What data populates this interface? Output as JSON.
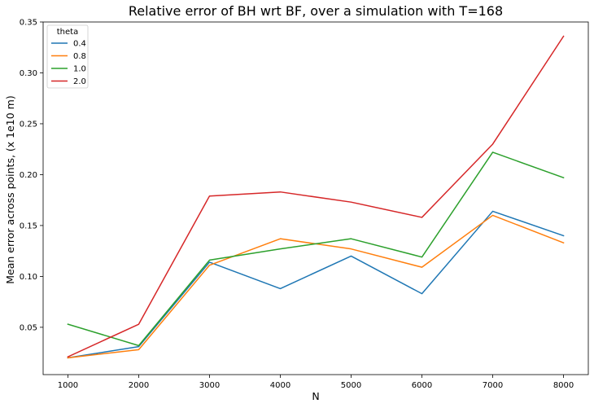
{
  "chart_data": {
    "type": "line",
    "title": "Relative error of BH wrt BF, over a simulation with T=168",
    "xlabel": "N",
    "ylabel": "Mean error across points, (x 1e10 m)",
    "x": [
      1000,
      2000,
      3000,
      4000,
      5000,
      6000,
      7000,
      8000
    ],
    "xlim": [
      650,
      8350
    ],
    "ylim": [
      0.0035,
      0.35
    ],
    "xticks": [
      "1000",
      "2000",
      "3000",
      "4000",
      "5000",
      "6000",
      "7000",
      "8000"
    ],
    "yticks": [
      "0.05",
      "0.10",
      "0.15",
      "0.20",
      "0.25",
      "0.30",
      "0.35"
    ],
    "grid": false,
    "legend": {
      "title": "theta",
      "placement": "top-left"
    },
    "series": [
      {
        "name": "0.4",
        "color": "#1f77b4",
        "values": [
          0.02,
          0.031,
          0.114,
          0.088,
          0.12,
          0.083,
          0.164,
          0.14
        ]
      },
      {
        "name": "0.8",
        "color": "#ff7f0e",
        "values": [
          0.02,
          0.028,
          0.111,
          0.137,
          0.127,
          0.109,
          0.16,
          0.133
        ]
      },
      {
        "name": "1.0",
        "color": "#2ca02c",
        "values": [
          0.053,
          0.032,
          0.116,
          0.127,
          0.137,
          0.119,
          0.222,
          0.197
        ]
      },
      {
        "name": "2.0",
        "color": "#d62728",
        "values": [
          0.021,
          0.053,
          0.179,
          0.183,
          0.173,
          0.158,
          0.23,
          0.336
        ]
      }
    ]
  }
}
